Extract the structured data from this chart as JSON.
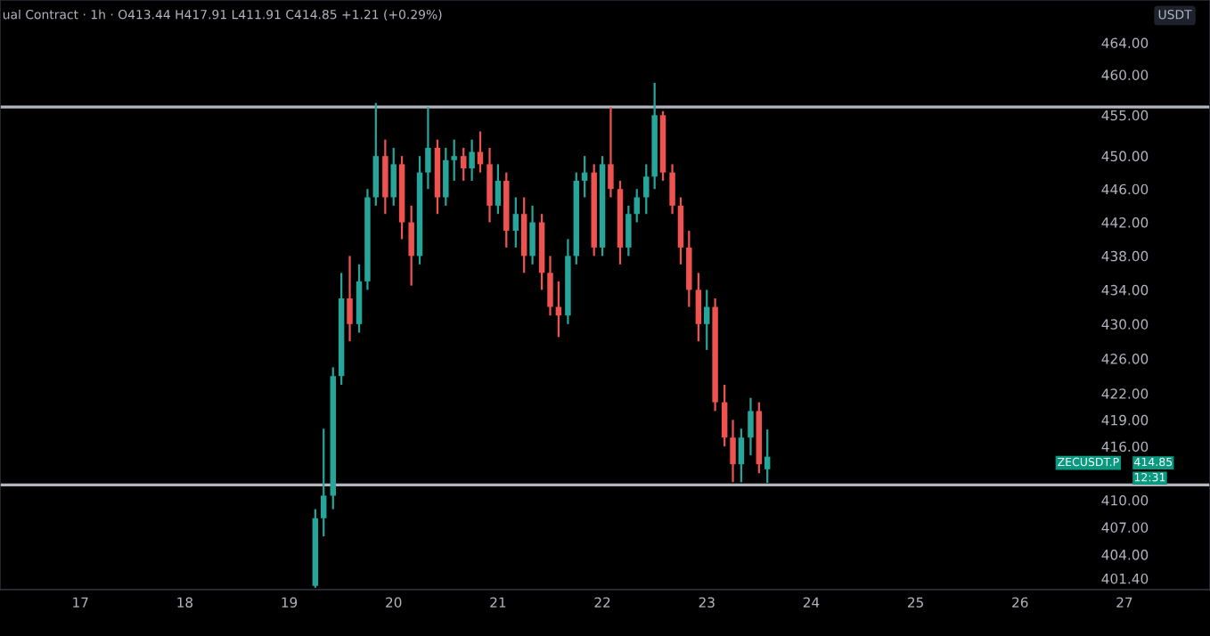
{
  "chart_data": {
    "type": "candlestick",
    "annotations": [
      "ual Contract · 1h · O413.44 H417.91 L411.91 C414.85 +1.21 (+0.29%)",
      "USDT",
      "ZECUSDT.P",
      "414.85",
      "12:31"
    ],
    "x": [
      19.25,
      19.33,
      19.42,
      19.5,
      19.58,
      19.67,
      19.75,
      19.83,
      19.92,
      20.0,
      20.08,
      20.17,
      20.25,
      20.33,
      20.42,
      20.5,
      20.58,
      20.67,
      20.75,
      20.83,
      20.92,
      21.0,
      21.08,
      21.17,
      21.25,
      21.33,
      21.42,
      21.5,
      21.58,
      21.67,
      21.75,
      21.83,
      21.92,
      22.0,
      22.08,
      22.17,
      22.25,
      22.33,
      22.42,
      22.5,
      22.58,
      22.67,
      22.75,
      22.83,
      22.92,
      23.0,
      23.08,
      23.17,
      23.25,
      23.33,
      23.42,
      23.5,
      23.58
    ],
    "ohlc": [
      [
        400.6,
        409,
        400.4,
        408
      ],
      [
        408,
        418,
        406,
        410.5
      ],
      [
        410.5,
        425,
        409,
        424
      ],
      [
        424,
        436,
        423,
        433
      ],
      [
        433,
        438,
        428,
        430
      ],
      [
        430,
        437,
        429,
        435
      ],
      [
        435,
        446,
        434,
        445
      ],
      [
        445,
        456.5,
        444,
        450
      ],
      [
        450,
        452,
        443,
        445
      ],
      [
        445,
        451,
        444,
        449
      ],
      [
        449,
        450,
        440,
        442
      ],
      [
        442,
        444,
        434.5,
        438
      ],
      [
        438,
        450,
        437,
        448
      ],
      [
        448,
        456,
        446,
        451
      ],
      [
        451,
        452,
        443,
        445
      ],
      [
        445,
        451,
        444,
        449.5
      ],
      [
        449.5,
        452,
        447,
        450
      ],
      [
        450,
        451,
        447,
        448.5
      ],
      [
        448.5,
        452,
        447,
        450.5
      ],
      [
        450.5,
        453,
        448,
        449
      ],
      [
        449,
        451,
        442,
        444
      ],
      [
        444,
        449,
        443,
        447
      ],
      [
        447,
        448,
        439,
        441
      ],
      [
        441,
        445,
        439,
        443
      ],
      [
        443,
        445,
        436,
        438
      ],
      [
        438,
        444,
        437,
        442
      ],
      [
        442,
        443,
        434,
        436
      ],
      [
        436,
        438,
        431,
        432
      ],
      [
        432,
        435,
        428.5,
        431
      ],
      [
        431,
        440,
        430,
        438
      ],
      [
        438,
        448,
        437,
        447
      ],
      [
        447,
        450,
        445,
        448
      ],
      [
        448,
        449,
        438,
        439
      ],
      [
        439,
        450,
        438,
        449
      ],
      [
        449,
        456,
        445,
        446
      ],
      [
        446,
        447,
        437,
        439
      ],
      [
        439,
        444,
        438,
        443
      ],
      [
        443,
        446,
        442,
        445
      ],
      [
        445,
        449,
        443,
        447.5
      ],
      [
        447.5,
        459,
        446,
        455
      ],
      [
        455,
        455.5,
        447,
        448
      ],
      [
        448,
        449,
        443,
        444
      ],
      [
        444,
        445,
        437,
        439
      ],
      [
        439,
        441,
        432,
        434
      ],
      [
        434,
        436,
        428,
        430
      ],
      [
        430,
        434,
        427,
        432
      ],
      [
        432,
        433,
        420,
        421
      ],
      [
        421,
        423,
        416,
        417
      ],
      [
        417,
        419,
        412,
        414
      ],
      [
        414,
        418,
        412,
        417
      ],
      [
        417,
        421.5,
        415,
        420
      ],
      [
        420,
        421,
        413,
        414
      ],
      [
        413.44,
        417.91,
        411.91,
        414.85
      ]
    ],
    "colors": [
      "#26a69a",
      "#26a69a",
      "#26a69a",
      "#26a69a",
      "#ef5350",
      "#26a69a",
      "#26a69a",
      "#26a69a",
      "#ef5350",
      "#26a69a",
      "#ef5350",
      "#ef5350",
      "#26a69a",
      "#26a69a",
      "#ef5350",
      "#26a69a",
      "#26a69a",
      "#ef5350",
      "#26a69a",
      "#ef5350",
      "#ef5350",
      "#26a69a",
      "#ef5350",
      "#26a69a",
      "#ef5350",
      "#26a69a",
      "#ef5350",
      "#ef5350",
      "#ef5350",
      "#26a69a",
      "#26a69a",
      "#26a69a",
      "#ef5350",
      "#26a69a",
      "#ef5350",
      "#ef5350",
      "#26a69a",
      "#26a69a",
      "#26a69a",
      "#26a69a",
      "#ef5350",
      "#ef5350",
      "#ef5350",
      "#ef5350",
      "#ef5350",
      "#26a69a",
      "#ef5350",
      "#ef5350",
      "#ef5350",
      "#26a69a",
      "#26a69a",
      "#ef5350",
      "#26a69a"
    ],
    "log": true,
    "xlim": [
      16.23,
      27.82
    ],
    "xticks": [
      17,
      18,
      19,
      20,
      21,
      22,
      23,
      24,
      25,
      26,
      27
    ],
    "ylim": [
      400.2,
      469.4
    ],
    "yticks": [
      {
        "value": 464,
        "label": "464.00"
      },
      {
        "value": 460,
        "label": "460.00"
      },
      {
        "value": 455,
        "label": "455.00"
      },
      {
        "value": 450,
        "label": "450.00"
      },
      {
        "value": 446,
        "label": "446.00"
      },
      {
        "value": 442,
        "label": "442.00"
      },
      {
        "value": 438,
        "label": "438.00"
      },
      {
        "value": 434,
        "label": "434.00"
      },
      {
        "value": 430,
        "label": "430.00"
      },
      {
        "value": 426,
        "label": "426.00"
      },
      {
        "value": 422,
        "label": "422.00"
      },
      {
        "value": 419,
        "label": "419.00"
      },
      {
        "value": 416,
        "label": "416.00"
      },
      {
        "value": 410,
        "label": "410.00"
      },
      {
        "value": 407,
        "label": "407.00"
      },
      {
        "value": 404,
        "label": "404.00"
      },
      {
        "value": 401.4,
        "label": "401.40"
      }
    ],
    "ref_lines": [
      {
        "axis": "y",
        "value": 456.0,
        "color": "#b2b5be"
      },
      {
        "axis": "y",
        "value": 411.7,
        "color": "#b2b5be"
      }
    ],
    "grid": false,
    "legend": false
  }
}
